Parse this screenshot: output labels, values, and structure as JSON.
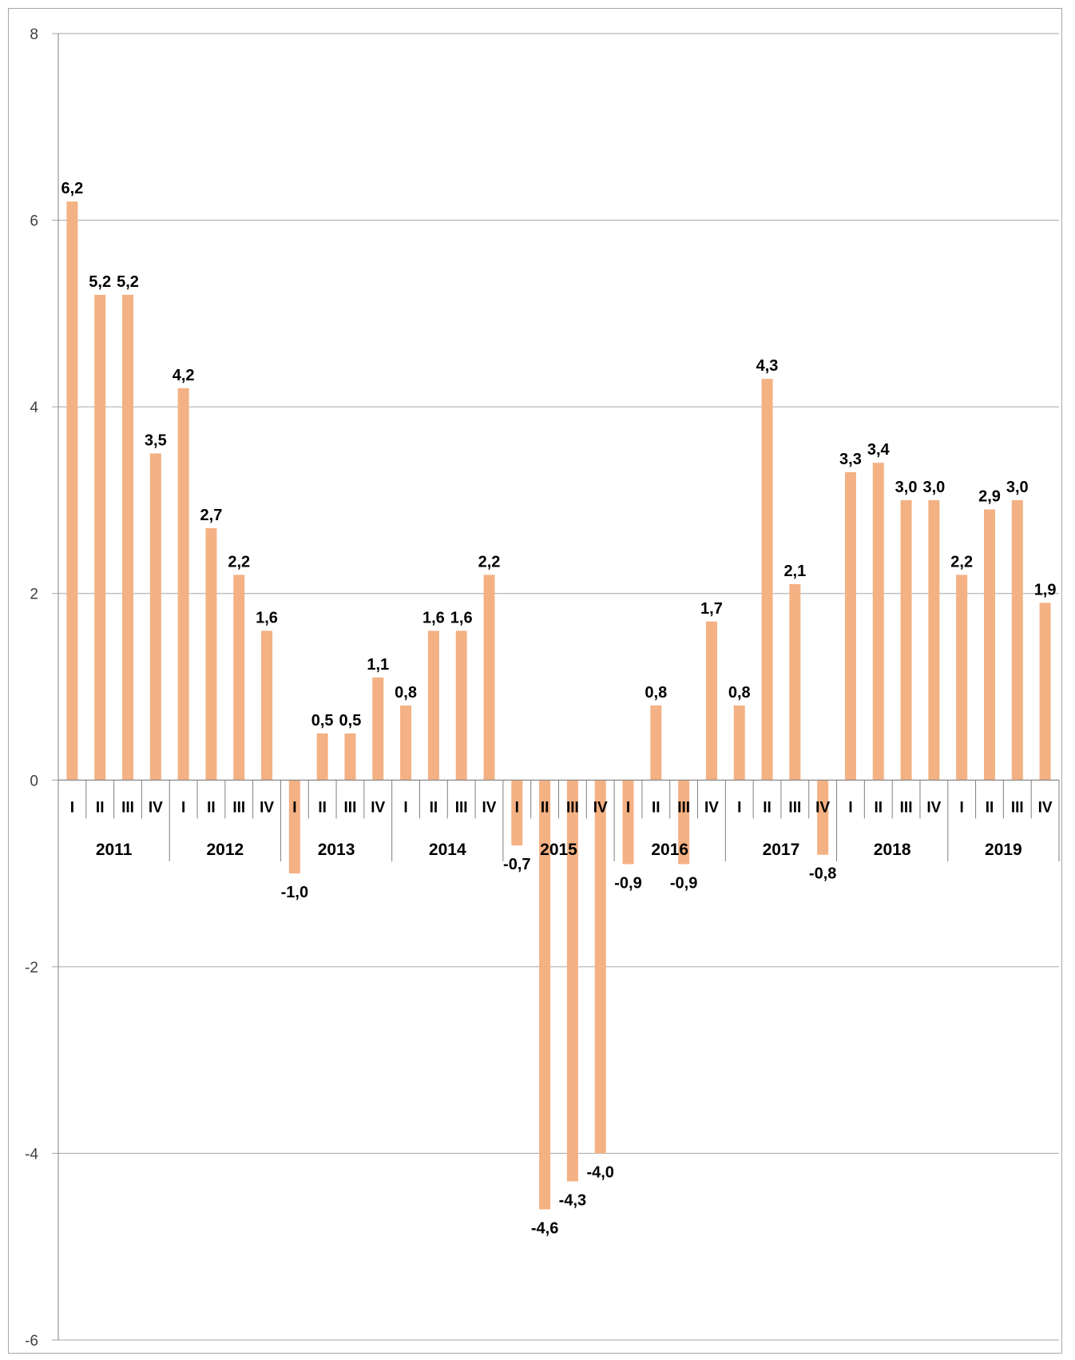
{
  "chart_data": {
    "type": "bar",
    "title": "",
    "xlabel": "",
    "ylabel": "",
    "ylim": [
      -6,
      8
    ],
    "yticks": [
      -6,
      -4,
      -2,
      0,
      2,
      4,
      6,
      8
    ],
    "ytick_labels": [
      "-6",
      "-4",
      "-2",
      "0",
      "2",
      "4",
      "6",
      "8"
    ],
    "grid": true,
    "legend": "none",
    "years": [
      "2011",
      "2012",
      "2013",
      "2014",
      "2015",
      "2016",
      "2017",
      "2018",
      "2019"
    ],
    "quarters": [
      "I",
      "II",
      "III",
      "IV"
    ],
    "values": [
      6.2,
      5.2,
      5.2,
      3.5,
      4.2,
      2.7,
      2.2,
      1.6,
      -1.0,
      0.5,
      0.5,
      1.1,
      0.8,
      1.6,
      1.6,
      2.2,
      -0.7,
      -4.6,
      -4.3,
      -4.0,
      -0.9,
      0.8,
      -0.9,
      1.7,
      0.8,
      4.3,
      2.1,
      -0.8,
      3.3,
      3.4,
      3.0,
      3.0,
      2.2,
      2.9,
      3.0,
      1.9
    ],
    "data_labels": [
      "6,2",
      "5,2",
      "5,2",
      "3,5",
      "4,2",
      "2,7",
      "2,2",
      "1,6",
      "-1,0",
      "0,5",
      "0,5",
      "1,1",
      "0,8",
      "1,6",
      "1,6",
      "2,2",
      "-0,7",
      "-4,6",
      "-4,3",
      "-4,0",
      "-0,9",
      "0,8",
      "-0,9",
      "1,7",
      "0,8",
      "4,3",
      "2,1",
      "-0,8",
      "3,3",
      "3,4",
      "3,0",
      "3,0",
      "2,2",
      "2,9",
      "3,0",
      "1,9"
    ],
    "colors": {
      "bar": "#F4B183",
      "grid": "#a6a6a6",
      "axis": "#7f7f7f"
    }
  }
}
